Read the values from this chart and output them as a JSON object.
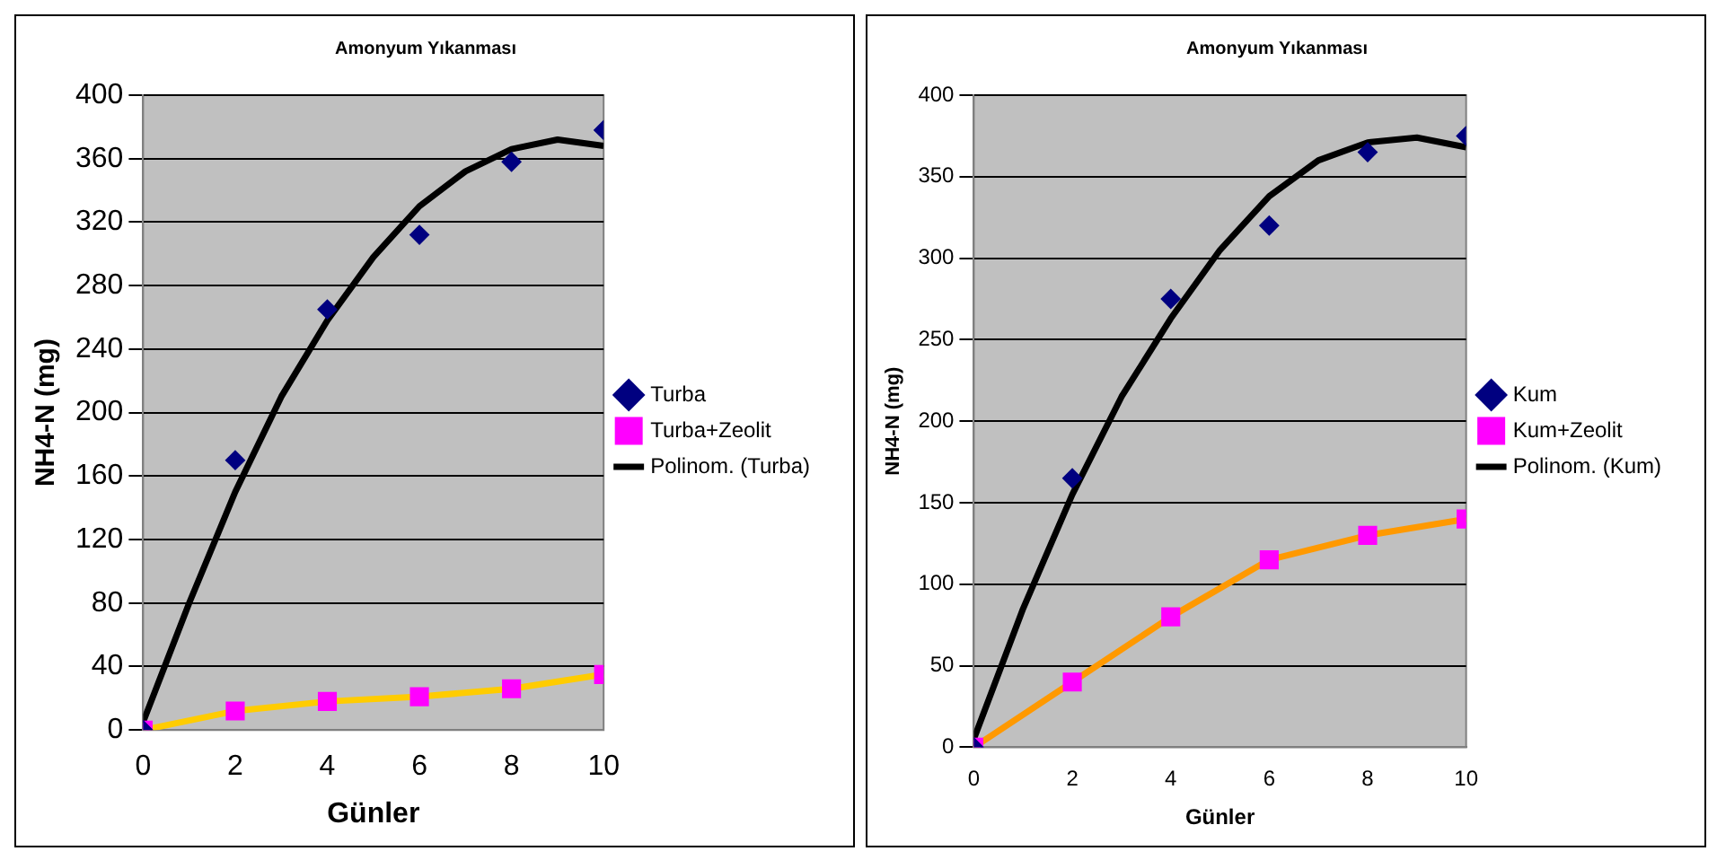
{
  "chart_data": [
    {
      "type": "scatter",
      "title": "Amonyum Yıkanması",
      "xlabel": "Günler",
      "ylabel": "NH4-N (mg)",
      "xlim": [
        0,
        10
      ],
      "xticks": [
        0,
        2,
        4,
        6,
        8,
        10
      ],
      "ylim": [
        0,
        400
      ],
      "yticks": [
        0,
        40,
        80,
        120,
        160,
        200,
        240,
        280,
        320,
        360,
        400
      ],
      "grid": "y",
      "legend": "right",
      "series": [
        {
          "name": "Turba",
          "marker": "diamond",
          "color": "#000080",
          "x": [
            0,
            2,
            4,
            6,
            8,
            10
          ],
          "values": [
            0,
            170,
            265,
            312,
            358,
            378
          ]
        },
        {
          "name": "Turba+Zeolit",
          "type": "line",
          "marker": "square",
          "color": "#ffcc00",
          "x": [
            0,
            2,
            4,
            6,
            8,
            10
          ],
          "values": [
            0,
            12,
            18,
            21,
            26,
            35
          ]
        },
        {
          "name": "Polinom. (Turba)",
          "type": "line",
          "marker": "none",
          "color": "#000000",
          "x": [
            0,
            1,
            2,
            3,
            4,
            5,
            6,
            7,
            8,
            9,
            10
          ],
          "values": [
            5,
            80,
            150,
            210,
            258,
            298,
            330,
            352,
            366,
            372,
            368
          ]
        }
      ]
    },
    {
      "type": "scatter",
      "title": "Amonyum Yıkanması",
      "xlabel": "Günler",
      "ylabel": "NH4-N (mg)",
      "xlim": [
        0,
        10
      ],
      "xticks": [
        0,
        2,
        4,
        6,
        8,
        10
      ],
      "ylim": [
        0,
        400
      ],
      "yticks": [
        0,
        50,
        100,
        150,
        200,
        250,
        300,
        350,
        400
      ],
      "grid": "y",
      "legend": "right",
      "series": [
        {
          "name": "Kum",
          "marker": "diamond",
          "color": "#000080",
          "x": [
            0,
            2,
            4,
            6,
            8,
            10
          ],
          "values": [
            0,
            165,
            275,
            320,
            365,
            375
          ]
        },
        {
          "name": "Kum+Zeolit",
          "type": "line",
          "marker": "square",
          "color": "#ff9900",
          "x": [
            0,
            2,
            4,
            6,
            8,
            10
          ],
          "values": [
            0,
            40,
            80,
            115,
            130,
            140
          ]
        },
        {
          "name": "Polinom. (Kum)",
          "type": "line",
          "marker": "none",
          "color": "#000000",
          "x": [
            0,
            1,
            2,
            3,
            4,
            5,
            6,
            7,
            8,
            9,
            10
          ],
          "values": [
            5,
            85,
            155,
            215,
            263,
            305,
            338,
            360,
            371,
            374,
            368
          ]
        }
      ]
    }
  ]
}
